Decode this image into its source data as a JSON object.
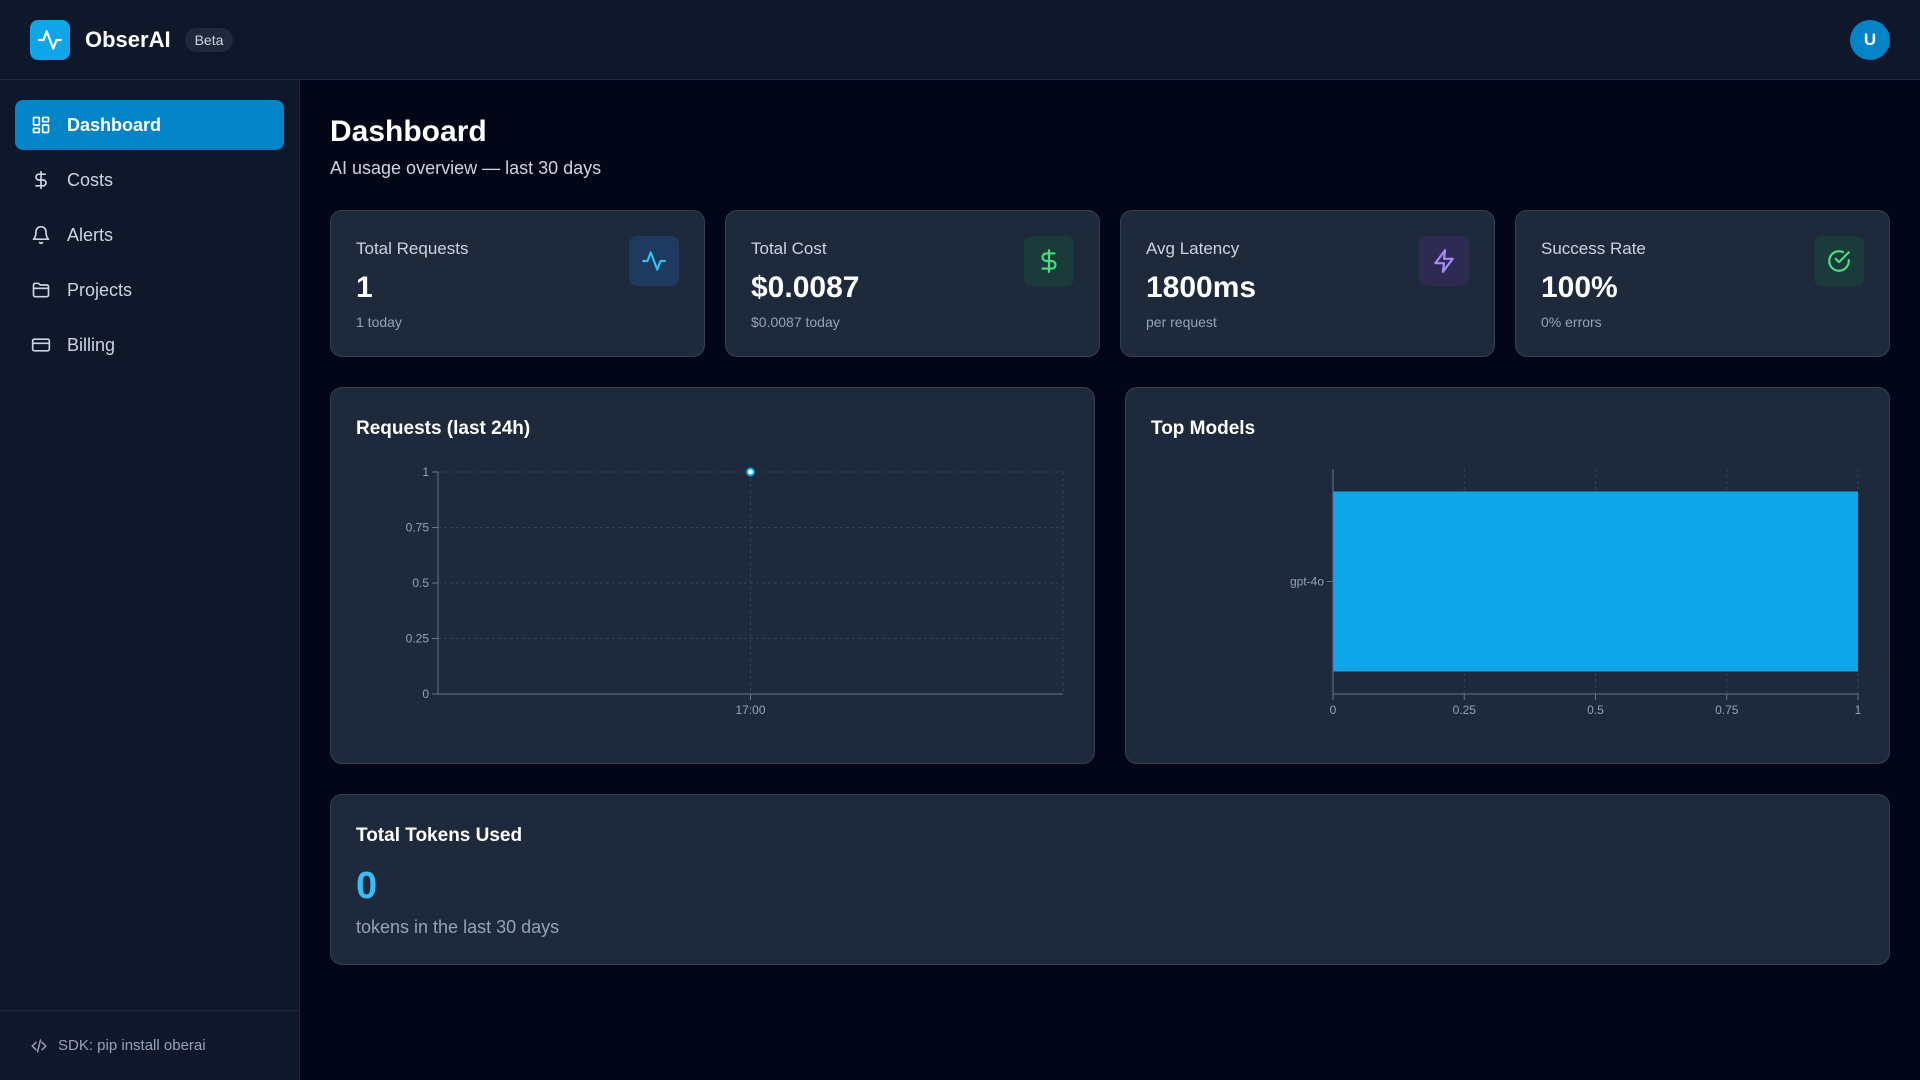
{
  "app": {
    "name": "ObserAI",
    "badge": "Beta",
    "logo_icon": "activity-icon",
    "accent": "#0ea5e9",
    "user_initial": "U"
  },
  "sidebar": {
    "items": [
      {
        "label": "Dashboard",
        "icon": "dashboard-grid-icon",
        "active": true
      },
      {
        "label": "Costs",
        "icon": "dollar-icon",
        "active": false
      },
      {
        "label": "Alerts",
        "icon": "bell-icon",
        "active": false
      },
      {
        "label": "Projects",
        "icon": "folder-icon",
        "active": false
      },
      {
        "label": "Billing",
        "icon": "credit-card-icon",
        "active": false
      }
    ],
    "footer": "SDK: pip install oberai",
    "footer_icon": "code-icon"
  },
  "page": {
    "title": "Dashboard",
    "subtitle": "AI usage overview — last 30 days"
  },
  "stats": [
    {
      "label": "Total Requests",
      "value": "1",
      "sub": "1 today",
      "icon": "activity-icon",
      "color": "#38bdf8"
    },
    {
      "label": "Total Cost",
      "value": "$0.0087",
      "sub": "$0.0087 today",
      "icon": "dollar-icon",
      "color": "#4ade80"
    },
    {
      "label": "Avg Latency",
      "value": "1800ms",
      "sub": "per request",
      "icon": "lightning-icon",
      "color": "#a78bfa"
    },
    {
      "label": "Success Rate",
      "value": "100%",
      "sub": "0% errors",
      "icon": "check-circle-icon",
      "color": "#4ade80"
    }
  ],
  "requests_panel": {
    "title": "Requests (last 24h)"
  },
  "models_panel": {
    "title": "Top Models"
  },
  "tokens_panel": {
    "title": "Total Tokens Used",
    "value": "0",
    "sub": "tokens in the last 30 days"
  },
  "chart_data": [
    {
      "type": "line",
      "title": "Requests (last 24h)",
      "x": [
        "17:00"
      ],
      "series": [
        {
          "values": [
            1
          ]
        }
      ],
      "ylim": [
        0,
        1
      ],
      "yticks": [
        "0",
        "0.25",
        "0.5",
        "0.75",
        "1"
      ],
      "grid": true,
      "color": "#0ea5e9"
    },
    {
      "type": "bar",
      "orientation": "horizontal",
      "title": "Top Models",
      "categories": [
        "gpt-4o"
      ],
      "values": [
        1
      ],
      "xlim": [
        0,
        1
      ],
      "xticks": [
        "0",
        "0.25",
        "0.5",
        "0.75",
        "1"
      ],
      "grid": true,
      "color": "#0ea5e9"
    }
  ]
}
